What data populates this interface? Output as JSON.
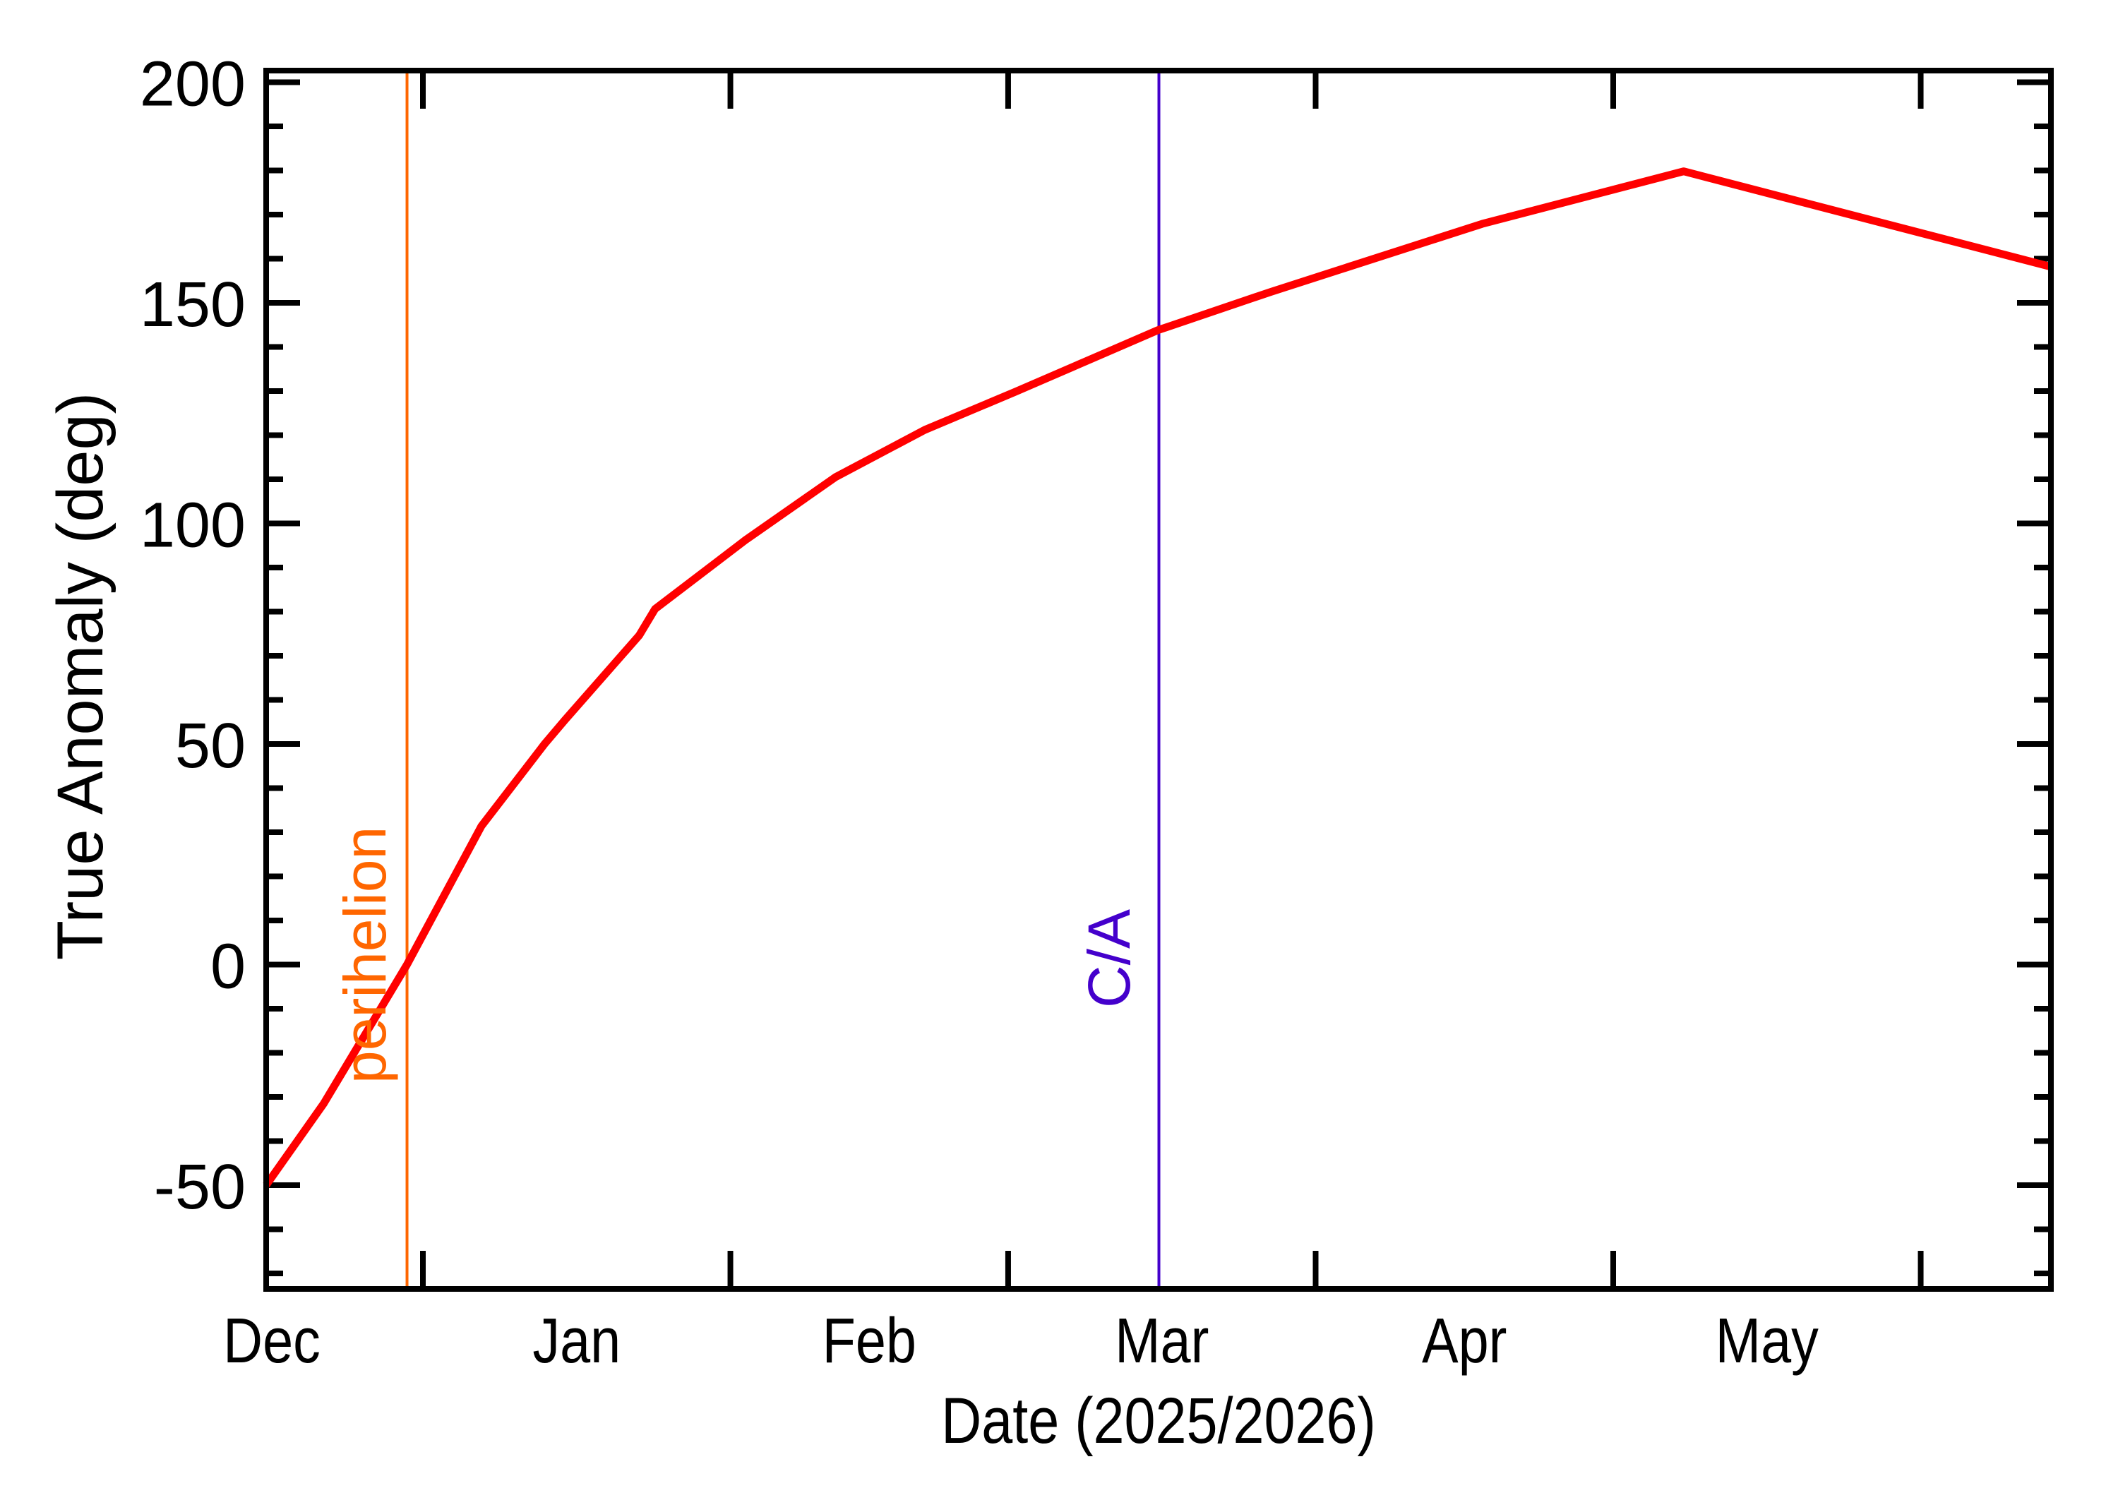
{
  "chart_data": {
    "type": "line",
    "title": "",
    "xlabel": "Date (2025/2026)",
    "ylabel": "True Anomaly (deg)",
    "x_units": "days relative to Jan 1 2026",
    "xlim": [
      -15.8,
      164.1
    ],
    "ylim": [
      -73.5,
      202.6
    ],
    "grid": false,
    "legend": null,
    "x_ticks": [
      {
        "label": "Dec",
        "tick_day": -31,
        "label_day": -15.5
      },
      {
        "label": "Jan",
        "tick_day": 0,
        "label_day": 15.5
      },
      {
        "label": "Feb",
        "tick_day": 31,
        "label_day": 45
      },
      {
        "label": "Mar",
        "tick_day": 59,
        "label_day": 74.5
      },
      {
        "label": "Apr",
        "tick_day": 90,
        "label_day": 105
      },
      {
        "label": "May",
        "tick_day": 120,
        "label_day": 135.5
      },
      {
        "label": "",
        "tick_day": 151,
        "label_day": null
      }
    ],
    "y_ticks": [
      -50,
      0,
      50,
      100,
      150,
      200
    ],
    "y_minor_step": 10,
    "series": [
      {
        "name": "True Anomaly",
        "color": "#ff0000",
        "x": [
          -15.8,
          -10.0,
          -1.6,
          5.9,
          12.3,
          14.3,
          21.8,
          23.4,
          32.5,
          41.6,
          50.6,
          59.7,
          74.1,
          85.5,
          106.8,
          127.1,
          164.1
        ],
        "values": [
          -50.0,
          -31.5,
          0.0,
          31.4,
          50.1,
          55.4,
          74.6,
          80.6,
          96.2,
          110.5,
          121.2,
          129.8,
          143.8,
          152.5,
          167.9,
          179.8,
          158.2
        ]
      }
    ],
    "annotations": [
      {
        "label": "perihelion",
        "x_day": -1.6,
        "color": "#ff6600",
        "type": "vertical-line"
      },
      {
        "label": "C/A",
        "x_day": 74.2,
        "color": "#4400cc",
        "type": "vertical-line"
      }
    ]
  },
  "axes": {
    "xlabel": "Date (2025/2026)",
    "ylabel": "True Anomaly (deg)",
    "month_labels": [
      "Dec",
      "Jan",
      "Feb",
      "Mar",
      "Apr",
      "May"
    ],
    "y_tick_labels": [
      "-50",
      "0",
      "50",
      "100",
      "150",
      "200"
    ]
  },
  "markers": {
    "perihelion": {
      "label": "perihelion",
      "color": "#ff6600"
    },
    "closest_approach": {
      "label": "C/A",
      "color": "#4400cc"
    }
  },
  "colors": {
    "curve": "#ff0000",
    "axes": "#000000",
    "background": "#ffffff"
  }
}
